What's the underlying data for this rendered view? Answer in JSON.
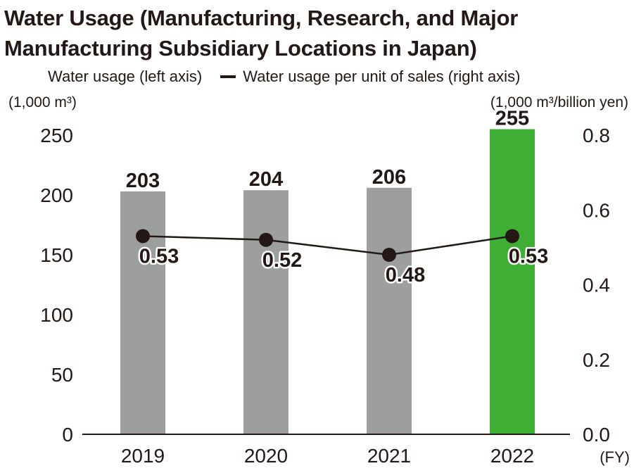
{
  "chart_data": {
    "type": "bar",
    "title": "Water Usage (Manufacturing, Research, and Major Manufacturing Subsidiary Locations in Japan)",
    "categories": [
      "2019",
      "2020",
      "2021",
      "2022"
    ],
    "x_unit": "(FY)",
    "series": [
      {
        "name": "Water usage (left axis)",
        "type": "bar",
        "axis": "left",
        "values": [
          203,
          204,
          206,
          255
        ],
        "colors": [
          "#9d9e9e",
          "#9d9e9e",
          "#9d9e9e",
          "#3fae35"
        ]
      },
      {
        "name": "Water usage per unit of sales (right axis)",
        "type": "line",
        "axis": "right",
        "values": [
          0.53,
          0.52,
          0.48,
          0.53
        ],
        "labels": [
          "0.53",
          "0.52",
          "0.48",
          "0.53"
        ],
        "color": "#231815"
      }
    ],
    "bar_labels": [
      "203",
      "204",
      "206",
      "255"
    ],
    "y_left": {
      "unit": "(1,000 m³)",
      "range": [
        0,
        250
      ],
      "ticks": [
        "0",
        "50",
        "100",
        "150",
        "200",
        "250"
      ]
    },
    "y_right": {
      "unit": "(1,000 m³/billion yen)",
      "range": [
        0,
        0.8
      ],
      "ticks": [
        "0.0",
        "0.2",
        "0.4",
        "0.6",
        "0.8"
      ]
    },
    "grid": false,
    "legend_position": "top-left",
    "colors": {
      "bar_past": "#9d9e9e",
      "bar_current": "#3fae35",
      "line": "#231815"
    }
  }
}
